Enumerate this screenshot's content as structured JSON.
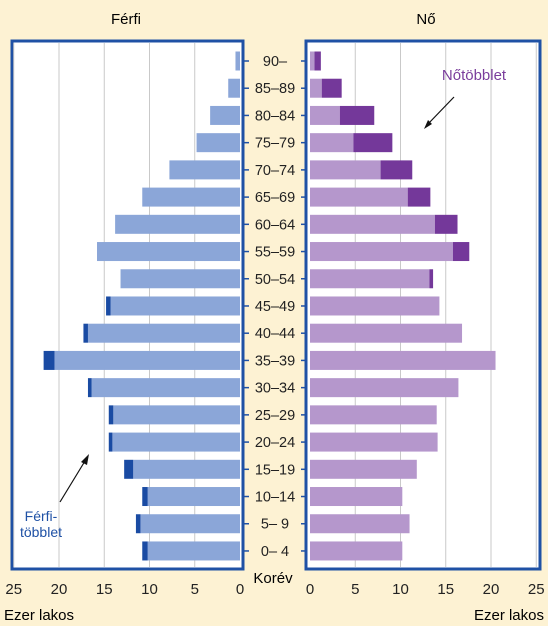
{
  "chart_data": {
    "type": "bar",
    "subtype": "population-pyramid",
    "left_title": "Férfi",
    "right_title": "Nő",
    "center_axis_label": "Korév",
    "unit_label_left": "Ezer lakos",
    "unit_label_right": "Ezer lakos",
    "x_ticks_left": [
      "25",
      "20",
      "15",
      "10",
      "5",
      "0"
    ],
    "x_ticks_right": [
      "0",
      "5",
      "10",
      "15",
      "20",
      "25"
    ],
    "xlim": [
      0,
      25
    ],
    "grid": true,
    "annotations": {
      "male_surplus": [
        "Férfi-",
        "többlet"
      ],
      "female_surplus": "Nőtöbblet"
    },
    "categories": [
      "90–",
      "85–89",
      "80–84",
      "75–79",
      "70–74",
      "65–69",
      "60–64",
      "55–59",
      "50–54",
      "45–49",
      "40–44",
      "35–39",
      "30–34",
      "25–29",
      "20–24",
      "15–19",
      "10–14",
      "5– 9",
      "0– 4"
    ],
    "male_total": [
      0.5,
      1.3,
      3.3,
      4.8,
      7.8,
      10.8,
      13.8,
      15.8,
      13.2,
      14.8,
      17.3,
      21.7,
      16.8,
      14.5,
      14.5,
      12.8,
      10.8,
      11.5,
      10.8
    ],
    "female_total": [
      1.2,
      3.5,
      7.1,
      9.1,
      11.3,
      13.3,
      16.3,
      17.6,
      13.6,
      14.3,
      16.8,
      20.5,
      16.4,
      14.0,
      14.1,
      11.8,
      10.2,
      11.0,
      10.2
    ],
    "colors": {
      "male_base": "#8ba6d8",
      "male_surplus": "#1a4ba3",
      "female_base": "#b597cc",
      "female_surplus": "#74389a",
      "panel_border": "#1f51a5",
      "grid": "#c9c9c9",
      "male_annotation_text": "#1f51a5",
      "female_annotation_text": "#7a3d9c"
    }
  }
}
